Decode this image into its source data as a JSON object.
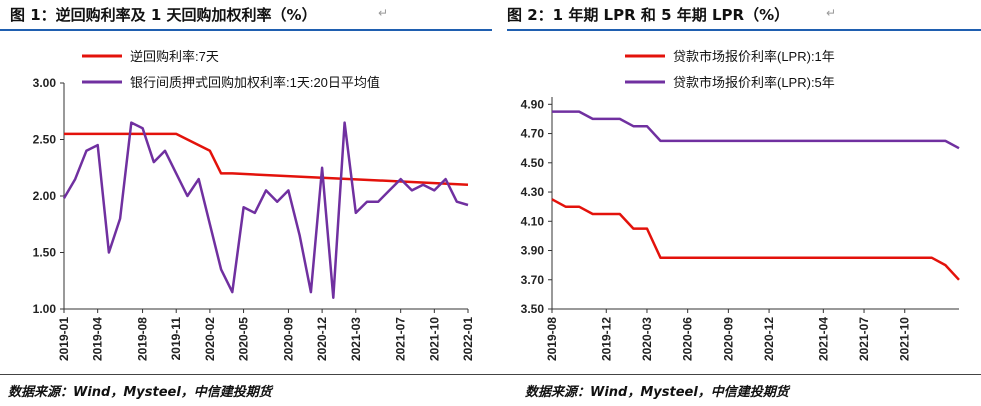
{
  "header": {
    "left_title": "图 1：逆回购利率及 1 天回购加权利率（%）",
    "right_title": "图 2：1 年期 LPR 和 5 年期 LPR（%）"
  },
  "source": {
    "left": "数据来源：Wind，Mysteel，中信建投期货",
    "right": "数据来源：Wind，Mysteel，中信建投期货"
  },
  "colors": {
    "red": "#e3120b",
    "purple": "#7030a0",
    "rule": "#1f5fb0"
  },
  "chart_data": [
    {
      "type": "line",
      "ylim": [
        1.0,
        3.0
      ],
      "yticks": [
        "3.00",
        "2.50",
        "2.00",
        "1.50",
        "1.00"
      ],
      "xticks": [
        "2019-01",
        "2019-04",
        "2019-08",
        "2019-11",
        "2020-02",
        "2020-05",
        "2020-09",
        "2020-12",
        "2021-03",
        "2021-07",
        "2021-10",
        "2022-01"
      ],
      "series": [
        {
          "name": "逆回购利率:7天",
          "color": "#e3120b",
          "x": [
            "2019-01",
            "2019-11",
            "2019-12",
            "2020-02",
            "2020-03",
            "2020-04",
            "2022-01"
          ],
          "y": [
            2.55,
            2.55,
            2.5,
            2.4,
            2.2,
            2.2,
            2.1
          ]
        },
        {
          "name": "银行间质押式回购加权利率:1天:20日平均值",
          "color": "#7030a0",
          "x": [
            "2019-01",
            "2019-02",
            "2019-03",
            "2019-04",
            "2019-05",
            "2019-06",
            "2019-07",
            "2019-08",
            "2019-09",
            "2019-10",
            "2019-11",
            "2019-12",
            "2020-01",
            "2020-02",
            "2020-03",
            "2020-04",
            "2020-05",
            "2020-06",
            "2020-07",
            "2020-08",
            "2020-09",
            "2020-10",
            "2020-11",
            "2020-12",
            "2021-01",
            "2021-02",
            "2021-03",
            "2021-04",
            "2021-05",
            "2021-06",
            "2021-07",
            "2021-08",
            "2021-09",
            "2021-10",
            "2021-11",
            "2021-12",
            "2022-01"
          ],
          "y": [
            1.98,
            2.15,
            2.4,
            2.45,
            1.5,
            1.8,
            2.65,
            2.6,
            2.3,
            2.4,
            2.2,
            2.0,
            2.15,
            1.75,
            1.35,
            1.15,
            1.9,
            1.85,
            2.05,
            1.95,
            2.05,
            1.65,
            1.15,
            2.25,
            1.1,
            2.65,
            1.85,
            1.95,
            1.95,
            2.05,
            2.15,
            2.05,
            2.1,
            2.05,
            2.15,
            1.95,
            1.92
          ]
        }
      ]
    },
    {
      "type": "line",
      "ylim": [
        3.5,
        4.95
      ],
      "yticks": [
        "4.90",
        "4.70",
        "4.50",
        "4.30",
        "4.10",
        "3.90",
        "3.70",
        "3.50"
      ],
      "xticks": [
        "2019-08",
        "2019-12",
        "2020-03",
        "2020-06",
        "2020-09",
        "2020-12",
        "2021-04",
        "2021-07",
        "2021-10"
      ],
      "series": [
        {
          "name": "贷款市场报价利率(LPR):1年",
          "color": "#e3120b",
          "x": [
            "2019-08",
            "2019-09",
            "2019-10",
            "2019-11",
            "2019-12",
            "2020-01",
            "2020-02",
            "2020-03",
            "2020-04",
            "2020-05",
            "2020-06",
            "2021-12",
            "2022-01",
            "2022-02"
          ],
          "y": [
            4.25,
            4.2,
            4.2,
            4.15,
            4.15,
            4.15,
            4.05,
            4.05,
            3.85,
            3.85,
            3.85,
            3.85,
            3.8,
            3.7
          ]
        },
        {
          "name": "贷款市场报价利率(LPR):5年",
          "color": "#7030a0",
          "x": [
            "2019-08",
            "2019-09",
            "2019-10",
            "2019-11",
            "2019-12",
            "2020-01",
            "2020-02",
            "2020-03",
            "2020-04",
            "2020-05",
            "2020-06",
            "2021-12",
            "2022-01",
            "2022-02"
          ],
          "y": [
            4.85,
            4.85,
            4.85,
            4.8,
            4.8,
            4.8,
            4.75,
            4.75,
            4.65,
            4.65,
            4.65,
            4.65,
            4.65,
            4.6
          ]
        }
      ]
    }
  ]
}
